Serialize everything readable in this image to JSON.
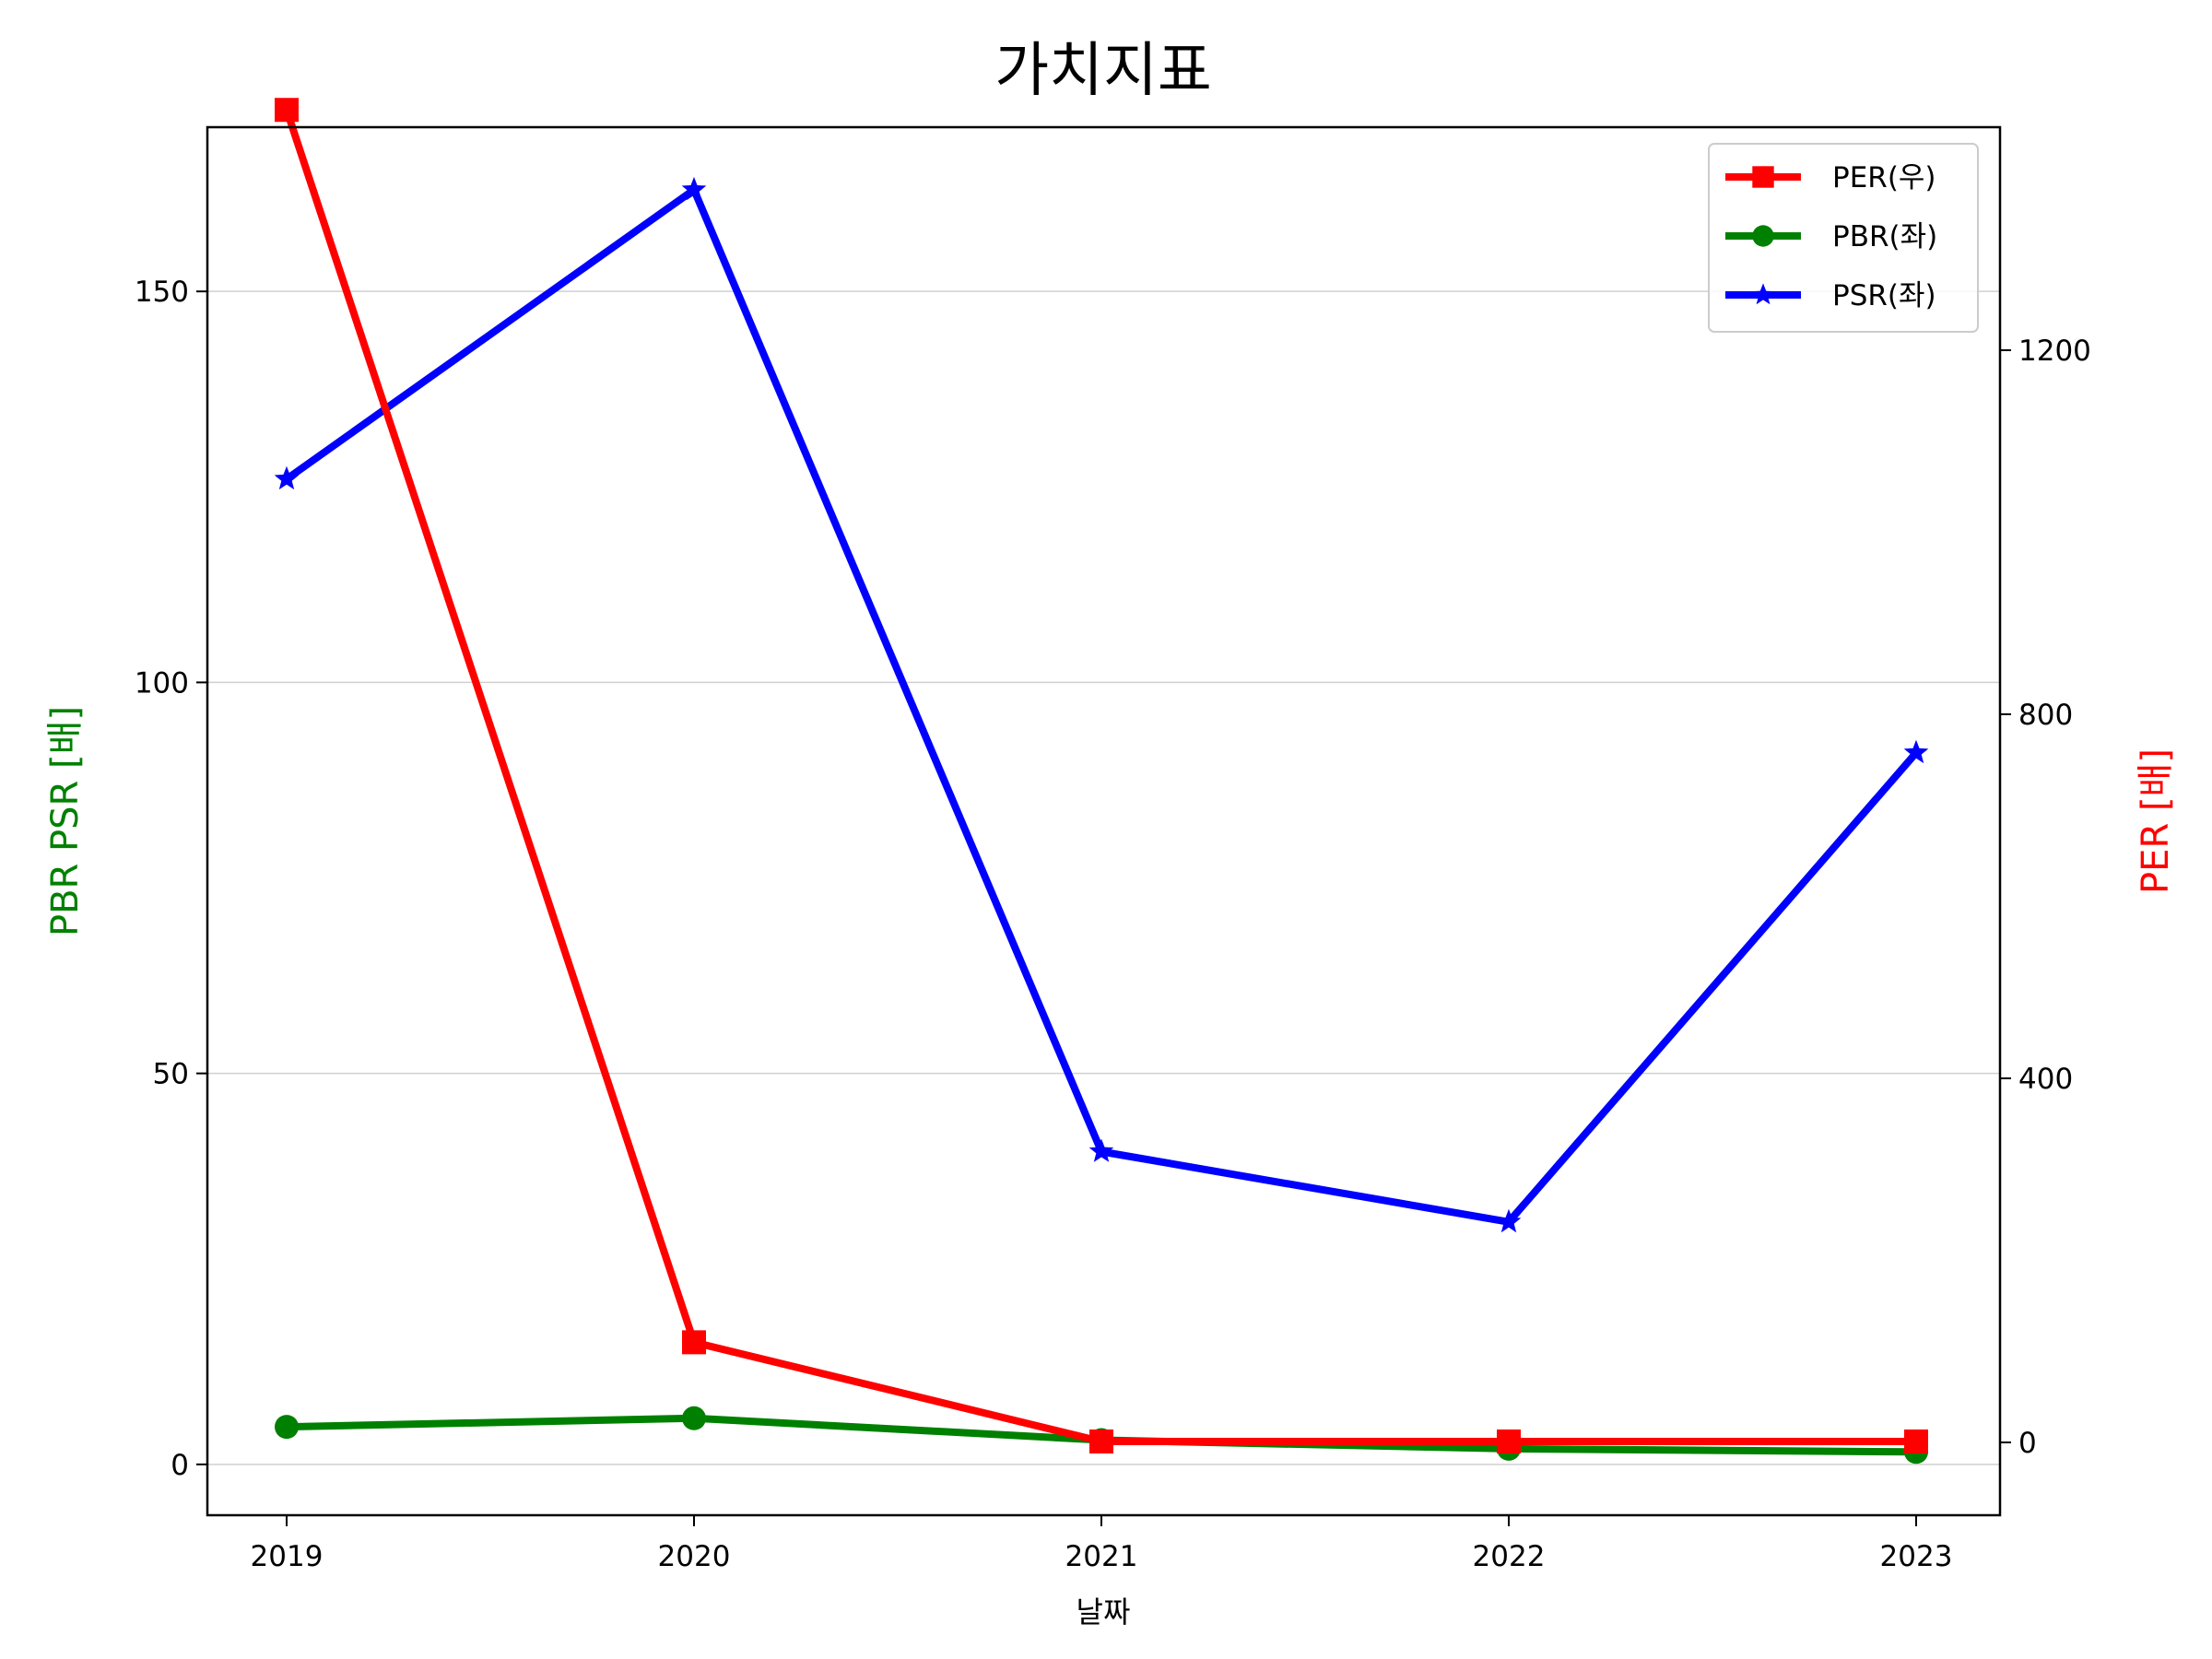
{
  "chart_data": {
    "type": "line",
    "title": "가치지표",
    "xlabel": "날짜",
    "ylabel_left": "PBR PSR [배]",
    "ylabel_right": "PER [배]",
    "categories": [
      "2019",
      "2020",
      "2021",
      "2022",
      "2023"
    ],
    "ylim_left": [
      -6.5,
      171
    ],
    "ylim_right": [
      -80,
      1445
    ],
    "yticks_left": [
      0,
      50,
      100,
      150
    ],
    "yticks_right": [
      0,
      400,
      800,
      1200
    ],
    "grid": "horizontal (left axis)",
    "legend_position": "top-right",
    "series": [
      {
        "name": "PER(우)",
        "axis": "right",
        "color": "#ff0000",
        "marker": "square",
        "values": [
          1464,
          110,
          1,
          1,
          1
        ]
      },
      {
        "name": "PBR(좌)",
        "axis": "left",
        "color": "#008000",
        "marker": "circle",
        "values": [
          4.8,
          5.9,
          3.1,
          2.0,
          1.6
        ]
      },
      {
        "name": "PSR(좌)",
        "axis": "left",
        "color": "#0000ff",
        "marker": "star",
        "values": [
          126,
          163,
          40,
          31,
          91
        ]
      }
    ]
  }
}
